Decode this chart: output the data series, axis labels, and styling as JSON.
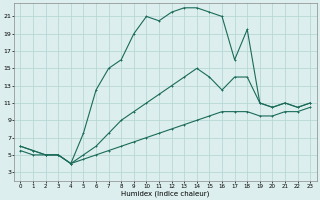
{
  "xlabel": "Humidex (Indice chaleur)",
  "background_color": "#dceeed",
  "grid_color": "#b8d8d4",
  "line_color": "#1a6b5a",
  "xlim": [
    -0.5,
    23.5
  ],
  "ylim": [
    2.0,
    22.5
  ],
  "xticks": [
    0,
    1,
    2,
    3,
    4,
    5,
    6,
    7,
    8,
    9,
    10,
    11,
    12,
    13,
    14,
    15,
    16,
    17,
    18,
    19,
    20,
    21,
    22,
    23
  ],
  "yticks": [
    3,
    5,
    7,
    9,
    11,
    13,
    15,
    17,
    19,
    21
  ],
  "line1_x": [
    0,
    1,
    2,
    3,
    4,
    5,
    6,
    7,
    8,
    9,
    10,
    11,
    12,
    13,
    14,
    15,
    16,
    17,
    18,
    19,
    20,
    21,
    22,
    23
  ],
  "line1_y": [
    6.0,
    5.5,
    5.0,
    5.0,
    4.0,
    7.5,
    12.5,
    15.0,
    16.0,
    19.0,
    21.0,
    20.5,
    21.5,
    22.0,
    22.0,
    21.5,
    21.0,
    16.0,
    19.5,
    11.0,
    10.5,
    11.0,
    10.5,
    11.0
  ],
  "line2_x": [
    0,
    1,
    2,
    3,
    4,
    5,
    6,
    7,
    8,
    9,
    10,
    11,
    12,
    13,
    14,
    15,
    16,
    17,
    18,
    19,
    20,
    21,
    22,
    23
  ],
  "line2_y": [
    6.0,
    5.5,
    5.0,
    5.0,
    4.0,
    5.0,
    6.0,
    7.5,
    9.0,
    10.0,
    11.0,
    12.0,
    13.0,
    14.0,
    15.0,
    14.0,
    12.5,
    14.0,
    14.0,
    11.0,
    10.5,
    11.0,
    10.5,
    11.0
  ],
  "line3_x": [
    0,
    1,
    2,
    3,
    4,
    5,
    6,
    7,
    8,
    9,
    10,
    11,
    12,
    13,
    14,
    15,
    16,
    17,
    18,
    19,
    20,
    21,
    22,
    23
  ],
  "line3_y": [
    5.5,
    5.0,
    5.0,
    5.0,
    4.0,
    4.5,
    5.0,
    5.5,
    6.0,
    6.5,
    7.0,
    7.5,
    8.0,
    8.5,
    9.0,
    9.5,
    10.0,
    10.0,
    10.0,
    9.5,
    9.5,
    10.0,
    10.0,
    10.5
  ]
}
